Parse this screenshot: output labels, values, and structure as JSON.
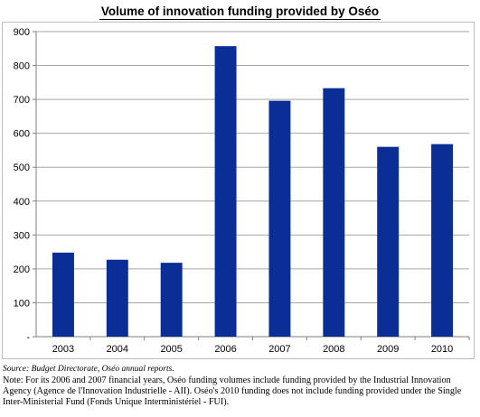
{
  "title": "Volume of innovation funding provided by Oséo",
  "source": "Source: Budget  Directorate, Oséo annual reports.",
  "note": "Note: For its 2006 and 2007 financial years, Oséo funding volumes include funding provided by the Industrial Innovation Agency (Agence de l'Innovation Industrielle - AII). Oséo's 2010 funding does not include funding provided under the Single Inter-Ministerial Fund (Fonds Unique Interministériel - FUI).",
  "colors": {
    "bar": "#0a2d96",
    "grid": "#a6a6a6",
    "axis": "#7f7f7f"
  },
  "chart_data": {
    "type": "bar",
    "title": "Volume of innovation funding provided by Oséo",
    "categories": [
      "2003",
      "2004",
      "2005",
      "2006",
      "2007",
      "2008",
      "2009",
      "2010"
    ],
    "values": [
      248,
      227,
      218,
      857,
      696,
      733,
      560,
      568
    ],
    "ylim": [
      0,
      900
    ],
    "yticks": [
      0,
      100,
      200,
      300,
      400,
      500,
      600,
      700,
      800,
      900
    ],
    "ytick_labels": [
      "-",
      "100",
      "200",
      "300",
      "400",
      "500",
      "600",
      "700",
      "800",
      "900"
    ],
    "grid": true,
    "legend": "none"
  }
}
